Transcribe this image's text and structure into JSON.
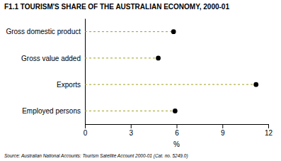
{
  "chart_data": {
    "type": "dot",
    "title": "F1.1 TOURISM'S SHARE OF THE AUSTRALIAN ECONOMY, 2000-01",
    "categories": [
      "Gross domestic product",
      "Gross value added",
      "Exports",
      "Employed persons"
    ],
    "values": [
      5.8,
      4.8,
      11.2,
      5.9
    ],
    "color": "#000000",
    "marker": "circle",
    "line_style": "dashed",
    "xlabel": "%",
    "xlim": [
      0,
      12
    ],
    "xticks": [
      0,
      3,
      6,
      9,
      12
    ],
    "grid": false,
    "annotations": [
      "Source: Australian National Accounts: Tourism Satellite Account 2000-01 (Cat. no. 5249.0)"
    ]
  }
}
